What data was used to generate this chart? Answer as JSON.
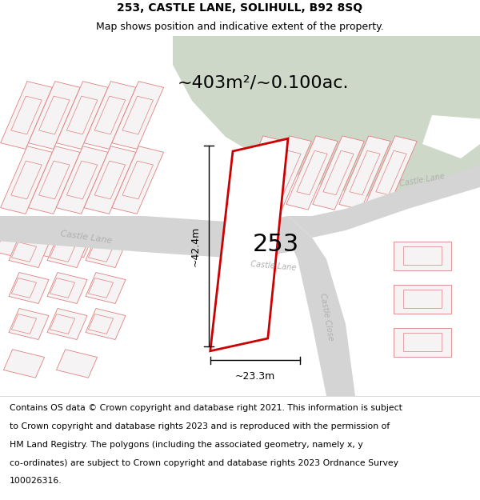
{
  "title_line1": "253, CASTLE LANE, SOLIHULL, B92 8SQ",
  "title_line2": "Map shows position and indicative extent of the property.",
  "area_text": "~403m²/~0.100ac.",
  "property_number": "253",
  "dim_height": "~42.4m",
  "dim_width": "~23.3m",
  "footer_text": "Contains OS data © Crown copyright and database right 2021. This information is subject to Crown copyright and database rights 2023 and is reproduced with the permission of HM Land Registry. The polygons (including the associated geometry, namely x, y co-ordinates) are subject to Crown copyright and database rights 2023 Ordnance Survey 100026316.",
  "map_bg": "#eeecec",
  "road_color": "#d4d4d4",
  "building_line_color": "#e08080",
  "building_fill": "#f5f3f3",
  "green_area_color": "#cdd8c8",
  "property_outline_color": "#cc0000",
  "title_fontsize": 10,
  "subtitle_fontsize": 9,
  "area_fontsize": 16,
  "number_fontsize": 22,
  "footer_fontsize": 7.8,
  "road_label_color": "#b0b0b0",
  "road_label_size": 8
}
